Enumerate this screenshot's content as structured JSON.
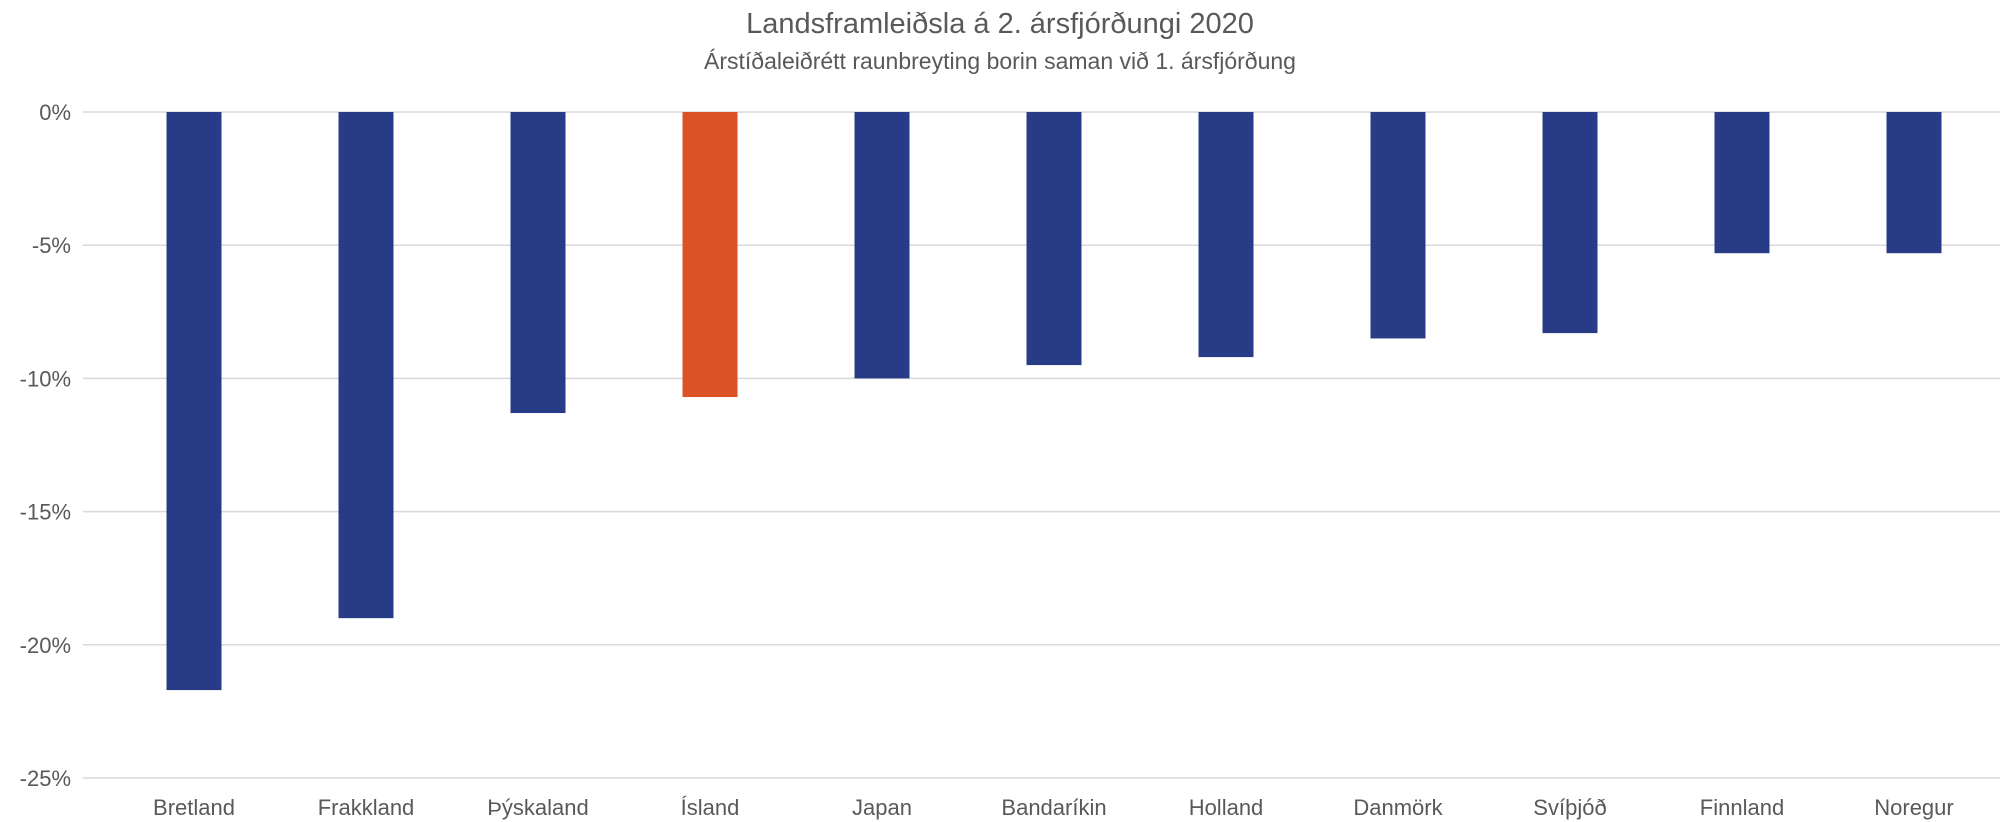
{
  "chart_data": {
    "type": "bar",
    "title": "Landsframleiðsla á 2. ársfjórðungi 2020",
    "subtitle": "Árstíðaleiðrétt raunbreyting borin saman við 1. ársfjórðung",
    "xlabel": "",
    "ylabel": "",
    "categories": [
      "Bretland",
      "Frakkland",
      "Þýskaland",
      "Ísland",
      "Japan",
      "Bandaríkin",
      "Holland",
      "Danmörk",
      "Svíþjóð",
      "Finnland",
      "Noregur"
    ],
    "values": [
      -21.7,
      -19.0,
      -11.3,
      -10.7,
      -10.0,
      -9.5,
      -9.2,
      -8.5,
      -8.3,
      -5.3,
      -5.3
    ],
    "ylim": [
      -25,
      0
    ],
    "yticks": [
      0,
      -5,
      -10,
      -15,
      -20,
      -25
    ],
    "ytick_labels": [
      "0%",
      "-5%",
      "-10%",
      "-15%",
      "-20%",
      "-25%"
    ],
    "grid": true,
    "legend": "none",
    "colors": {
      "default_bar": "#283b87",
      "highlight_bar": "#d95324",
      "highlight_category": "Ísland",
      "gridline": "#d9d9d9"
    }
  }
}
